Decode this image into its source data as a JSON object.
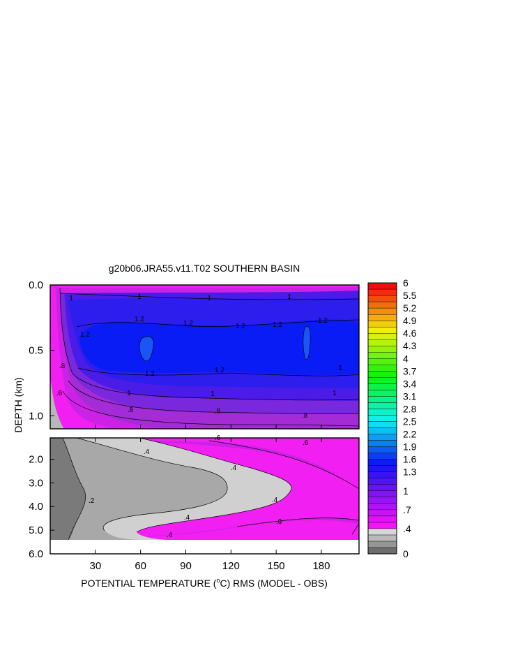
{
  "chart_data": {
    "type": "contour",
    "title": "g20b06.JRA55.v11.T02 SOUTHERN BASIN",
    "xlabel": "POTENTIAL TEMPERATURE (",
    "xlabel_unit": "o",
    "xlabel_tail": "C) RMS (MODEL - OBS)",
    "ylabel": "DEPTH (km)",
    "xlim": [
      0,
      205
    ],
    "x_ticks": [
      {
        "value": 30,
        "label": "30"
      },
      {
        "value": 60,
        "label": "60"
      },
      {
        "value": 90,
        "label": "90"
      },
      {
        "value": 120,
        "label": "120"
      },
      {
        "value": 150,
        "label": "150"
      },
      {
        "value": 180,
        "label": "180"
      }
    ],
    "top_panel": {
      "ylim": [
        0,
        1.1
      ],
      "y_ticks": [
        {
          "value": 0.0,
          "label": "0.0"
        },
        {
          "value": 0.5,
          "label": "0.5"
        },
        {
          "value": 1.0,
          "label": "1.0"
        }
      ]
    },
    "bottom_panel": {
      "ylim": [
        1.1,
        6.0
      ],
      "y_ticks": [
        {
          "value": 2.0,
          "label": "2.0"
        },
        {
          "value": 3.0,
          "label": "3.0"
        },
        {
          "value": 4.0,
          "label": "4.0"
        },
        {
          "value": 5.0,
          "label": "5.0"
        },
        {
          "value": 6.0,
          "label": "6.0"
        }
      ]
    },
    "colorbar": {
      "levels": [
        0,
        0.1,
        0.2,
        0.3,
        0.4,
        0.5,
        0.6,
        0.7,
        0.8,
        0.9,
        1.0,
        1.1,
        1.2,
        1.3,
        1.45,
        1.6,
        1.75,
        1.9,
        2.05,
        2.2,
        2.35,
        2.5,
        2.65,
        2.8,
        2.95,
        3.1,
        3.25,
        3.4,
        3.55,
        3.7,
        3.85,
        4.0,
        4.15,
        4.3,
        4.45,
        4.6,
        4.75,
        4.9,
        5.05,
        5.2,
        5.35,
        5.5,
        5.75,
        6.0
      ],
      "labels": [
        "0",
        ".4",
        ".7",
        "1",
        "1.3",
        "1.6",
        "1.9",
        "2.2",
        "2.5",
        "2.8",
        "3.1",
        "3.4",
        "3.7",
        "4",
        "4.3",
        "4.6",
        "4.9",
        "5.2",
        "5.5",
        "6"
      ]
    },
    "contour_labels": {
      "top": [
        "1",
        "1",
        "1",
        "1",
        "1.2",
        "1.2",
        "1.2",
        "1.2",
        "1.2",
        "1.2",
        "1.2",
        "1.2",
        "1",
        "1",
        "1",
        "1",
        ".8",
        ".8",
        ".8",
        ".8",
        ".6"
      ],
      "bottom": [
        ".6",
        ".6",
        ".4",
        ".4",
        ".4",
        ".4",
        ".4",
        ".2",
        ".6"
      ]
    },
    "regions": [
      {
        "panel": "top",
        "level": 1.25,
        "label": "core below 1.2 contour, depth 0.2 to 0.7 km"
      },
      {
        "panel": "bottom",
        "level": 0.0,
        "label": "minimum near x 0 to 25, depth 3.5 to 5.3 km"
      }
    ]
  }
}
